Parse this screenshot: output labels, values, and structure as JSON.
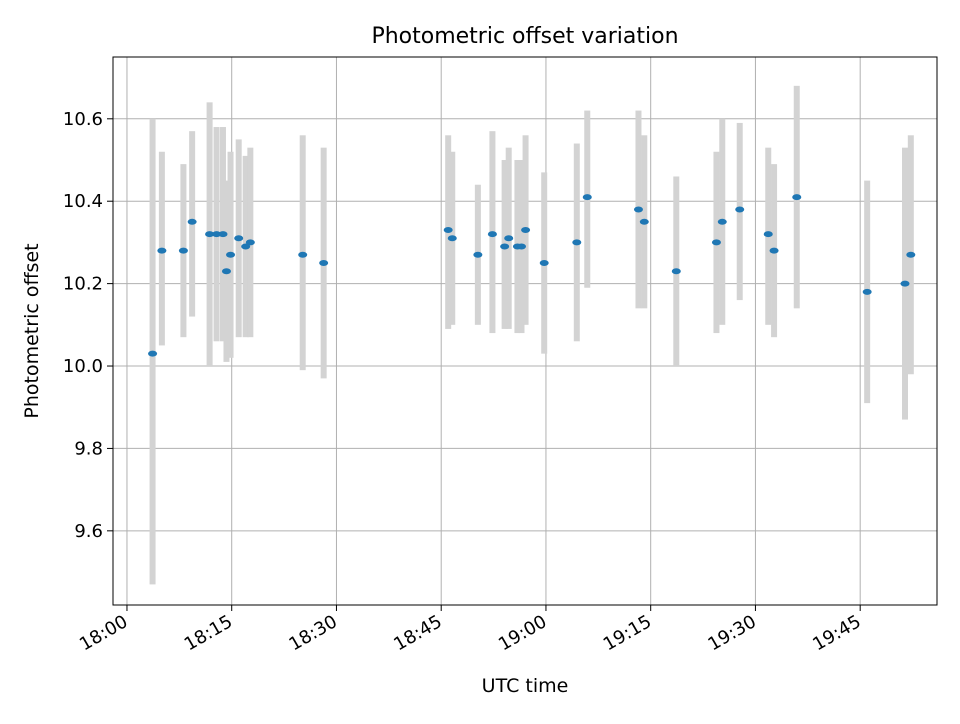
{
  "chart_data": {
    "type": "scatter",
    "title": "Photometric offset variation",
    "xlabel": "UTC time",
    "ylabel": "Photometric offset",
    "x_ticks": [
      "18:00",
      "18:15",
      "18:30",
      "18:45",
      "19:00",
      "19:15",
      "19:30",
      "19:45"
    ],
    "x_tick_minutes": [
      0,
      15,
      30,
      45,
      60,
      75,
      90,
      105
    ],
    "y_ticks": [
      9.6,
      9.8,
      10.0,
      10.2,
      10.4,
      10.6
    ],
    "xlim": [
      "17:58",
      "19:56"
    ],
    "ylim": [
      9.42,
      10.75
    ],
    "grid": true,
    "marker_color": "#1f77b4",
    "errorbar_color": "#d3d3d3",
    "series": [
      {
        "points": [
          {
            "t": "18:03:40",
            "y": 10.03,
            "ylo": 9.47,
            "yhi": 10.6
          },
          {
            "t": "18:05:00",
            "y": 10.28,
            "ylo": 10.05,
            "yhi": 10.52
          },
          {
            "t": "18:08:05",
            "y": 10.28,
            "ylo": 10.07,
            "yhi": 10.49
          },
          {
            "t": "18:09:20",
            "y": 10.35,
            "ylo": 10.12,
            "yhi": 10.57
          },
          {
            "t": "18:11:50",
            "y": 10.32,
            "ylo": 10.0,
            "yhi": 10.64
          },
          {
            "t": "18:12:50",
            "y": 10.32,
            "ylo": 10.06,
            "yhi": 10.58
          },
          {
            "t": "18:13:45",
            "y": 10.32,
            "ylo": 10.06,
            "yhi": 10.58
          },
          {
            "t": "18:14:15",
            "y": 10.23,
            "ylo": 10.01,
            "yhi": 10.45
          },
          {
            "t": "18:14:50",
            "y": 10.27,
            "ylo": 10.02,
            "yhi": 10.52
          },
          {
            "t": "18:16:00",
            "y": 10.31,
            "ylo": 10.07,
            "yhi": 10.55
          },
          {
            "t": "18:17:00",
            "y": 10.29,
            "ylo": 10.07,
            "yhi": 10.51
          },
          {
            "t": "18:17:40",
            "y": 10.3,
            "ylo": 10.07,
            "yhi": 10.53
          },
          {
            "t": "18:25:10",
            "y": 10.27,
            "ylo": 9.99,
            "yhi": 10.56
          },
          {
            "t": "18:28:10",
            "y": 10.25,
            "ylo": 9.97,
            "yhi": 10.53
          },
          {
            "t": "18:46:00",
            "y": 10.33,
            "ylo": 10.09,
            "yhi": 10.56
          },
          {
            "t": "18:46:35",
            "y": 10.31,
            "ylo": 10.1,
            "yhi": 10.52
          },
          {
            "t": "18:50:15",
            "y": 10.27,
            "ylo": 10.1,
            "yhi": 10.44
          },
          {
            "t": "18:52:20",
            "y": 10.32,
            "ylo": 10.08,
            "yhi": 10.57
          },
          {
            "t": "18:54:05",
            "y": 10.29,
            "ylo": 10.09,
            "yhi": 10.5
          },
          {
            "t": "18:54:40",
            "y": 10.31,
            "ylo": 10.09,
            "yhi": 10.53
          },
          {
            "t": "18:55:55",
            "y": 10.29,
            "ylo": 10.08,
            "yhi": 10.5
          },
          {
            "t": "18:56:30",
            "y": 10.29,
            "ylo": 10.08,
            "yhi": 10.5
          },
          {
            "t": "18:57:05",
            "y": 10.33,
            "ylo": 10.1,
            "yhi": 10.56
          },
          {
            "t": "18:59:45",
            "y": 10.25,
            "ylo": 10.03,
            "yhi": 10.47
          },
          {
            "t": "19:04:25",
            "y": 10.3,
            "ylo": 10.06,
            "yhi": 10.54
          },
          {
            "t": "19:05:55",
            "y": 10.41,
            "ylo": 10.19,
            "yhi": 10.62
          },
          {
            "t": "19:13:15",
            "y": 10.38,
            "ylo": 10.14,
            "yhi": 10.62
          },
          {
            "t": "19:14:05",
            "y": 10.35,
            "ylo": 10.14,
            "yhi": 10.56
          },
          {
            "t": "19:18:40",
            "y": 10.23,
            "ylo": 10.0,
            "yhi": 10.46
          },
          {
            "t": "19:24:25",
            "y": 10.3,
            "ylo": 10.08,
            "yhi": 10.52
          },
          {
            "t": "19:25:15",
            "y": 10.35,
            "ylo": 10.1,
            "yhi": 10.6
          },
          {
            "t": "19:27:45",
            "y": 10.38,
            "ylo": 10.16,
            "yhi": 10.59
          },
          {
            "t": "19:31:50",
            "y": 10.32,
            "ylo": 10.1,
            "yhi": 10.53
          },
          {
            "t": "19:32:40",
            "y": 10.28,
            "ylo": 10.07,
            "yhi": 10.49
          },
          {
            "t": "19:35:55",
            "y": 10.41,
            "ylo": 10.14,
            "yhi": 10.68
          },
          {
            "t": "19:46:00",
            "y": 10.18,
            "ylo": 9.91,
            "yhi": 10.45
          },
          {
            "t": "19:51:25",
            "y": 10.2,
            "ylo": 9.87,
            "yhi": 10.53
          },
          {
            "t": "19:52:15",
            "y": 10.27,
            "ylo": 9.98,
            "yhi": 10.56
          }
        ]
      }
    ]
  }
}
